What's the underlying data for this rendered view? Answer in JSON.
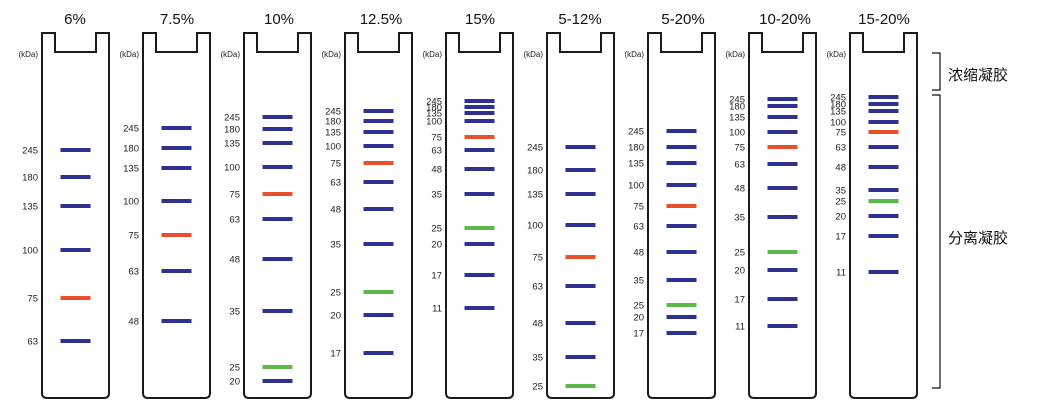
{
  "unit_label": "(kDa)",
  "annotations": {
    "stacking_gel": "浓缩凝胶",
    "separating_gel": "分离凝胶"
  },
  "colors": {
    "blue": "#2e3192",
    "red": "#e8502a",
    "green": "#5db84a",
    "outline": "#1a1a1a",
    "text": "#222222"
  },
  "lanes": [
    {
      "title": "6%",
      "bands": [
        [
          "245",
          "blue"
        ],
        [
          "180",
          "blue"
        ],
        [
          "135",
          "blue"
        ],
        [
          "100",
          "blue"
        ],
        [
          "75",
          "red"
        ],
        [
          "63",
          "blue"
        ]
      ]
    },
    {
      "title": "7.5%",
      "bands": [
        [
          "245",
          "blue"
        ],
        [
          "180",
          "blue"
        ],
        [
          "135",
          "blue"
        ],
        [
          "100",
          "blue"
        ],
        [
          "75",
          "red"
        ],
        [
          "63",
          "blue"
        ],
        [
          "48",
          "blue"
        ]
      ]
    },
    {
      "title": "10%",
      "bands": [
        [
          "245",
          "blue"
        ],
        [
          "180",
          "blue"
        ],
        [
          "135",
          "blue"
        ],
        [
          "100",
          "blue"
        ],
        [
          "75",
          "red"
        ],
        [
          "63",
          "blue"
        ],
        [
          "48",
          "blue"
        ],
        [
          "35",
          "blue"
        ],
        [
          "25",
          "green"
        ],
        [
          "20",
          "blue"
        ]
      ]
    },
    {
      "title": "12.5%",
      "bands": [
        [
          "245",
          "blue"
        ],
        [
          "180",
          "blue"
        ],
        [
          "135",
          "blue"
        ],
        [
          "100",
          "blue"
        ],
        [
          "75",
          "red"
        ],
        [
          "63",
          "blue"
        ],
        [
          "48",
          "blue"
        ],
        [
          "35",
          "blue"
        ],
        [
          "25",
          "green"
        ],
        [
          "20",
          "blue"
        ],
        [
          "17",
          "blue"
        ]
      ]
    },
    {
      "title": "15%",
      "bands": [
        [
          "245",
          "blue"
        ],
        [
          "180",
          "blue"
        ],
        [
          "135",
          "blue"
        ],
        [
          "100",
          "blue"
        ],
        [
          "75",
          "red"
        ],
        [
          "63",
          "blue"
        ],
        [
          "48",
          "blue"
        ],
        [
          "35",
          "blue"
        ],
        [
          "25",
          "green"
        ],
        [
          "20",
          "blue"
        ],
        [
          "17",
          "blue"
        ],
        [
          "11",
          "blue"
        ]
      ]
    },
    {
      "title": "5-12%",
      "bands": [
        [
          "245",
          "blue"
        ],
        [
          "180",
          "blue"
        ],
        [
          "135",
          "blue"
        ],
        [
          "100",
          "blue"
        ],
        [
          "75",
          "red"
        ],
        [
          "63",
          "blue"
        ],
        [
          "48",
          "blue"
        ],
        [
          "35",
          "blue"
        ],
        [
          "25",
          "green"
        ]
      ]
    },
    {
      "title": "5-20%",
      "bands": [
        [
          "245",
          "blue"
        ],
        [
          "180",
          "blue"
        ],
        [
          "135",
          "blue"
        ],
        [
          "100",
          "blue"
        ],
        [
          "75",
          "red"
        ],
        [
          "63",
          "blue"
        ],
        [
          "48",
          "blue"
        ],
        [
          "35",
          "blue"
        ],
        [
          "25",
          "green"
        ],
        [
          "20",
          "blue"
        ],
        [
          "17",
          "blue"
        ]
      ]
    },
    {
      "title": "10-20%",
      "bands": [
        [
          "245",
          "blue"
        ],
        [
          "180",
          "blue"
        ],
        [
          "135",
          "blue"
        ],
        [
          "100",
          "blue"
        ],
        [
          "75",
          "red"
        ],
        [
          "63",
          "blue"
        ],
        [
          "48",
          "blue"
        ],
        [
          "35",
          "blue"
        ],
        [
          "25",
          "green"
        ],
        [
          "20",
          "blue"
        ],
        [
          "17",
          "blue"
        ],
        [
          "11",
          "blue"
        ]
      ]
    },
    {
      "title": "15-20%",
      "bands": [
        [
          "245",
          "blue"
        ],
        [
          "180",
          "blue"
        ],
        [
          "135",
          "blue"
        ],
        [
          "100",
          "blue"
        ],
        [
          "75",
          "red"
        ],
        [
          "63",
          "blue"
        ],
        [
          "48",
          "blue"
        ],
        [
          "35",
          "blue"
        ],
        [
          "25",
          "green"
        ],
        [
          "20",
          "blue"
        ],
        [
          "17",
          "blue"
        ],
        [
          "11",
          "blue"
        ]
      ]
    }
  ]
}
